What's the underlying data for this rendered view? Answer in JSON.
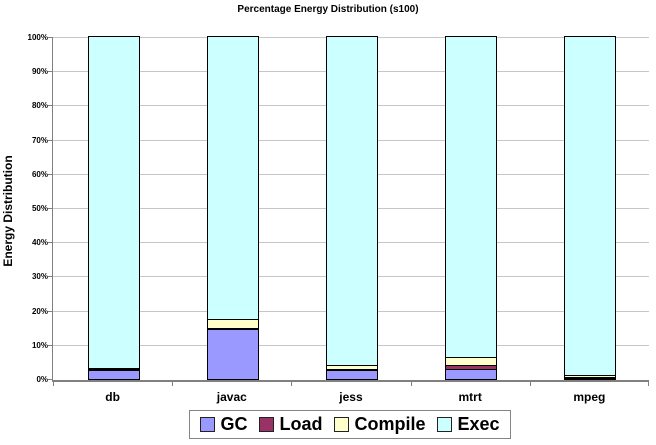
{
  "chart_data": {
    "type": "bar",
    "stacked": true,
    "title": "Percentage Energy Distribution (s100)",
    "ylabel": "Energy Distribution",
    "xlabel": "",
    "categories": [
      "db",
      "javac",
      "jess",
      "mtrt",
      "mpeg"
    ],
    "series": [
      {
        "name": "GC",
        "color": "#9999FF",
        "values": [
          2.5,
          14.5,
          2.5,
          3.0,
          0.3
        ]
      },
      {
        "name": "Load",
        "color": "#993366",
        "values": [
          0.3,
          0.5,
          0.5,
          1.0,
          0.2
        ]
      },
      {
        "name": "Compile",
        "color": "#FFFFCC",
        "values": [
          0.5,
          2.5,
          1.0,
          2.5,
          0.5
        ]
      },
      {
        "name": "Exec",
        "color": "#CCFFFF",
        "values": [
          96.7,
          82.5,
          96.0,
          93.5,
          99.0
        ]
      }
    ],
    "yticks": [
      "0%",
      "10%",
      "20%",
      "30%",
      "40%",
      "50%",
      "60%",
      "70%",
      "80%",
      "90%",
      "100%"
    ],
    "ylim": [
      0,
      100
    ],
    "grid": true,
    "legend_position": "bottom",
    "colors": {
      "gridline": "#C6C6C6",
      "axis": "#808080",
      "segment_border": "#000000",
      "background": "#FFFFFF"
    }
  }
}
